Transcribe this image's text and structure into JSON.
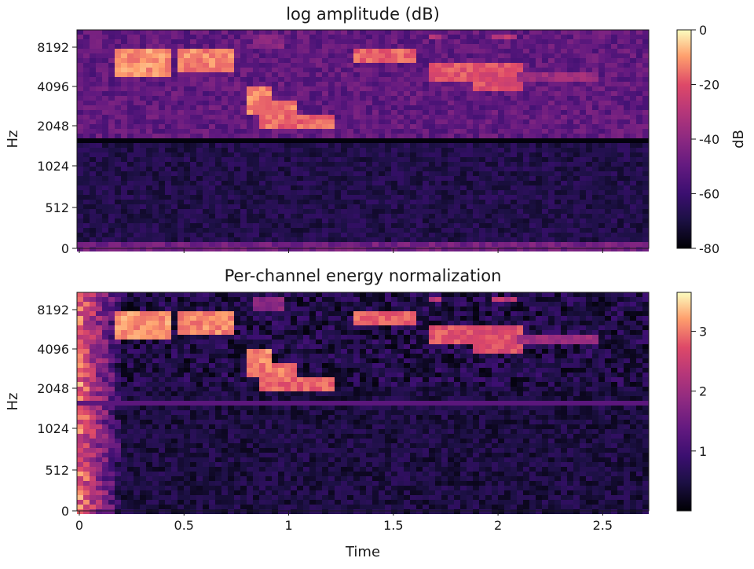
{
  "colors": {
    "low": "#000004",
    "mid": "#b73779",
    "high": "#fcfdbf",
    "axis": "#1a1a1a"
  },
  "chart_data": [
    {
      "type": "heatmap",
      "title": "log amplitude (dB)",
      "ylabel": "Hz",
      "xlabel": "",
      "y_ticks": [
        "0",
        "512",
        "1024",
        "2048",
        "4096",
        "8192"
      ],
      "x_ticks_visible": false,
      "x_ticks": [
        "0",
        "0.5",
        "1",
        "1.5",
        "2",
        "2.5"
      ],
      "x_tick_values": [
        0,
        0.5,
        1,
        1.5,
        2,
        2.5
      ],
      "xlim": [
        0,
        2.72
      ],
      "colorbar": {
        "label": "dB",
        "ticks": [
          "0",
          "-20",
          "-40",
          "-60",
          "-80"
        ],
        "tick_values": [
          0,
          -20,
          -40,
          -60,
          -80
        ],
        "range": [
          -80,
          0
        ]
      }
    },
    {
      "type": "heatmap",
      "title": "Per-channel energy normalization",
      "ylabel": "Hz",
      "xlabel": "Time",
      "y_ticks": [
        "0",
        "512",
        "1024",
        "2048",
        "4096",
        "8192"
      ],
      "x_ticks_visible": true,
      "x_ticks": [
        "0",
        "0.5",
        "1",
        "1.5",
        "2",
        "2.5"
      ],
      "x_tick_values": [
        0,
        0.5,
        1,
        1.5,
        2,
        2.5
      ],
      "xlim": [
        0,
        2.72
      ],
      "colorbar": {
        "label": "",
        "ticks": [
          "3",
          "2",
          "1"
        ],
        "tick_values": [
          3,
          2,
          1
        ],
        "range": [
          0,
          3.65
        ]
      }
    }
  ]
}
